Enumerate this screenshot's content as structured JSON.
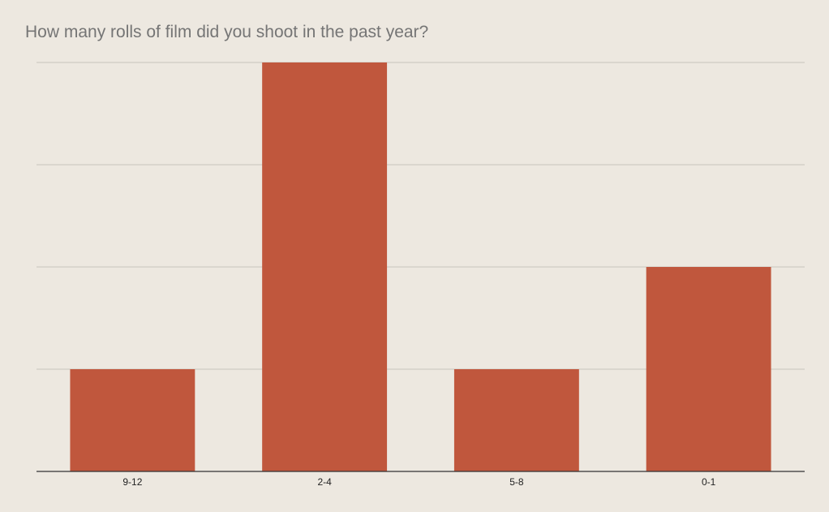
{
  "chart_data": {
    "type": "bar",
    "title": "How many rolls of film did you shoot in the past year?",
    "categories": [
      "9-12",
      "2-4",
      "5-8",
      "0-1"
    ],
    "values": [
      1,
      4,
      1,
      2
    ],
    "ylim": [
      0,
      4
    ],
    "grid": true,
    "legend": "none",
    "colors": {
      "bar": "#c0573d",
      "background": "#ede8e0",
      "gridline": "#c8c3bb",
      "axis": "#333333",
      "title": "#757575"
    }
  }
}
